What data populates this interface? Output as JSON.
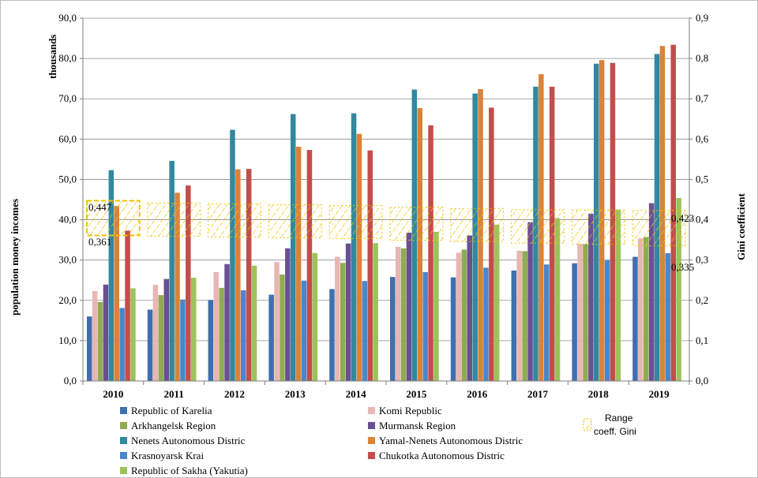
{
  "chart_data": {
    "type": "bar",
    "title": "",
    "ylabel_left": "population money incomes",
    "ylabel_left_unit": "thousands",
    "ylabel_right": "Gini coefficient",
    "ylim_left": [
      0,
      90
    ],
    "ylim_right": [
      0,
      0.9
    ],
    "yticks_left": [
      "0,0",
      "10,0",
      "20,0",
      "30,0",
      "40,0",
      "50,0",
      "60,0",
      "70,0",
      "80,0",
      "90,0"
    ],
    "yticks_right": [
      "0,0",
      "0,1",
      "0,2",
      "0,3",
      "0,4",
      "0,5",
      "0,6",
      "0,7",
      "0,8",
      "0,9"
    ],
    "categories": [
      "2010",
      "2011",
      "2012",
      "2013",
      "2014",
      "2015",
      "2016",
      "2017",
      "2018",
      "2019"
    ],
    "grid": "horizontal",
    "legend_position": "bottom",
    "series": [
      {
        "name": "Republic of Karelia",
        "color": "#3e6fb0",
        "values": [
          16.0,
          17.7,
          20.1,
          21.4,
          22.8,
          25.8,
          25.7,
          27.4,
          29.2,
          30.8
        ]
      },
      {
        "name": "Komi Republic",
        "color": "#e8b6b4",
        "values": [
          22.3,
          23.9,
          27.0,
          29.5,
          30.8,
          33.3,
          31.8,
          32.3,
          34.0,
          35.4
        ]
      },
      {
        "name": "Arkhangelsk Region",
        "color": "#8fac52",
        "values": [
          19.6,
          21.3,
          23.1,
          26.4,
          29.3,
          32.9,
          32.6,
          32.2,
          34.0,
          35.7
        ]
      },
      {
        "name": "Murmansk Region",
        "color": "#6a4f93",
        "values": [
          23.9,
          25.3,
          29.0,
          32.9,
          34.1,
          36.8,
          36.1,
          39.4,
          41.5,
          44.1
        ]
      },
      {
        "name": "Nenets Autonomous Distric",
        "color": "#31889f",
        "values": [
          52.3,
          54.6,
          62.3,
          66.2,
          66.4,
          72.3,
          71.3,
          73.0,
          78.7,
          81.1
        ]
      },
      {
        "name": "Yamal-Nenets Autonomous Distric",
        "color": "#d9833a",
        "values": [
          43.4,
          46.7,
          52.5,
          58.1,
          61.3,
          67.7,
          72.4,
          76.1,
          79.6,
          83.1
        ]
      },
      {
        "name": "Krasnoyarsk Krai",
        "color": "#4a87c9",
        "values": [
          18.1,
          20.2,
          22.5,
          24.9,
          24.8,
          27.0,
          28.1,
          28.9,
          29.9,
          31.7
        ]
      },
      {
        "name": "Chukotka Autonomous Distric",
        "color": "#c34d4b",
        "values": [
          37.3,
          48.5,
          52.6,
          57.3,
          57.2,
          63.4,
          67.8,
          73.0,
          78.9,
          83.4
        ]
      },
      {
        "name": "Republic of Sakha (Yakutia)",
        "color": "#9cc25a",
        "values": [
          23.0,
          25.6,
          28.6,
          31.7,
          34.2,
          37.0,
          38.8,
          40.4,
          42.5,
          45.4
        ]
      }
    ],
    "gini_range": {
      "name": "Range coeff. Gini",
      "color": "#f2c200",
      "max": [
        0.447,
        0.441,
        0.439,
        0.437,
        0.435,
        0.431,
        0.428,
        0.425,
        0.424,
        0.423
      ],
      "min": [
        0.361,
        0.359,
        0.357,
        0.355,
        0.353,
        0.349,
        0.346,
        0.342,
        0.339,
        0.335
      ]
    },
    "annotations": {
      "max_first": "0,447",
      "min_first": "0,361",
      "max_last": "0,423",
      "min_last": "0,335"
    },
    "legend_range_label_1": "Range",
    "legend_range_label_2": "coeff. Gini"
  }
}
